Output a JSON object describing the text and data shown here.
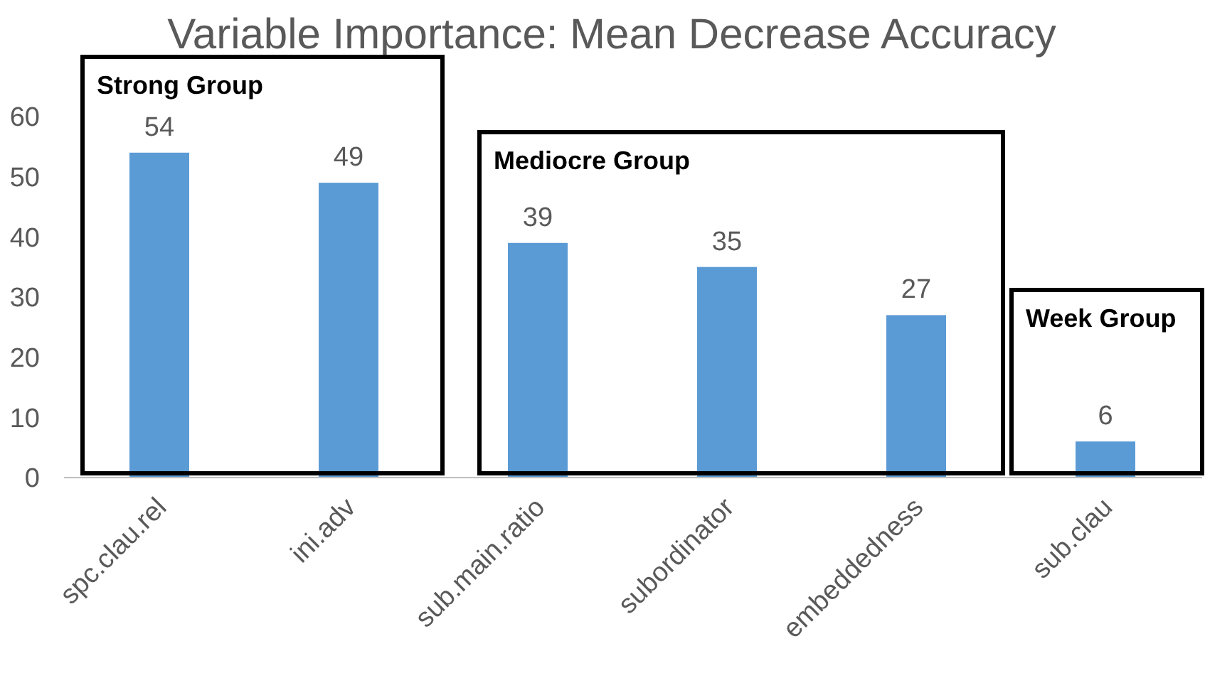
{
  "chart_data": {
    "type": "bar",
    "title": "Variable Importance: Mean Decrease Accuracy",
    "categories": [
      "spc.clau.rel",
      "ini.adv",
      "sub.main.ratio",
      "subordinator",
      "embeddedness",
      "sub.clau"
    ],
    "values": [
      54,
      49,
      39,
      35,
      27,
      6
    ],
    "color": "#5b9bd5",
    "ylim": [
      0,
      60
    ],
    "yticks": [
      0,
      10,
      20,
      30,
      40,
      50,
      60
    ],
    "data_labels": true,
    "grid": false,
    "annotations": [
      "Strong Group",
      "Mediocre Group",
      "Week Group"
    ]
  }
}
